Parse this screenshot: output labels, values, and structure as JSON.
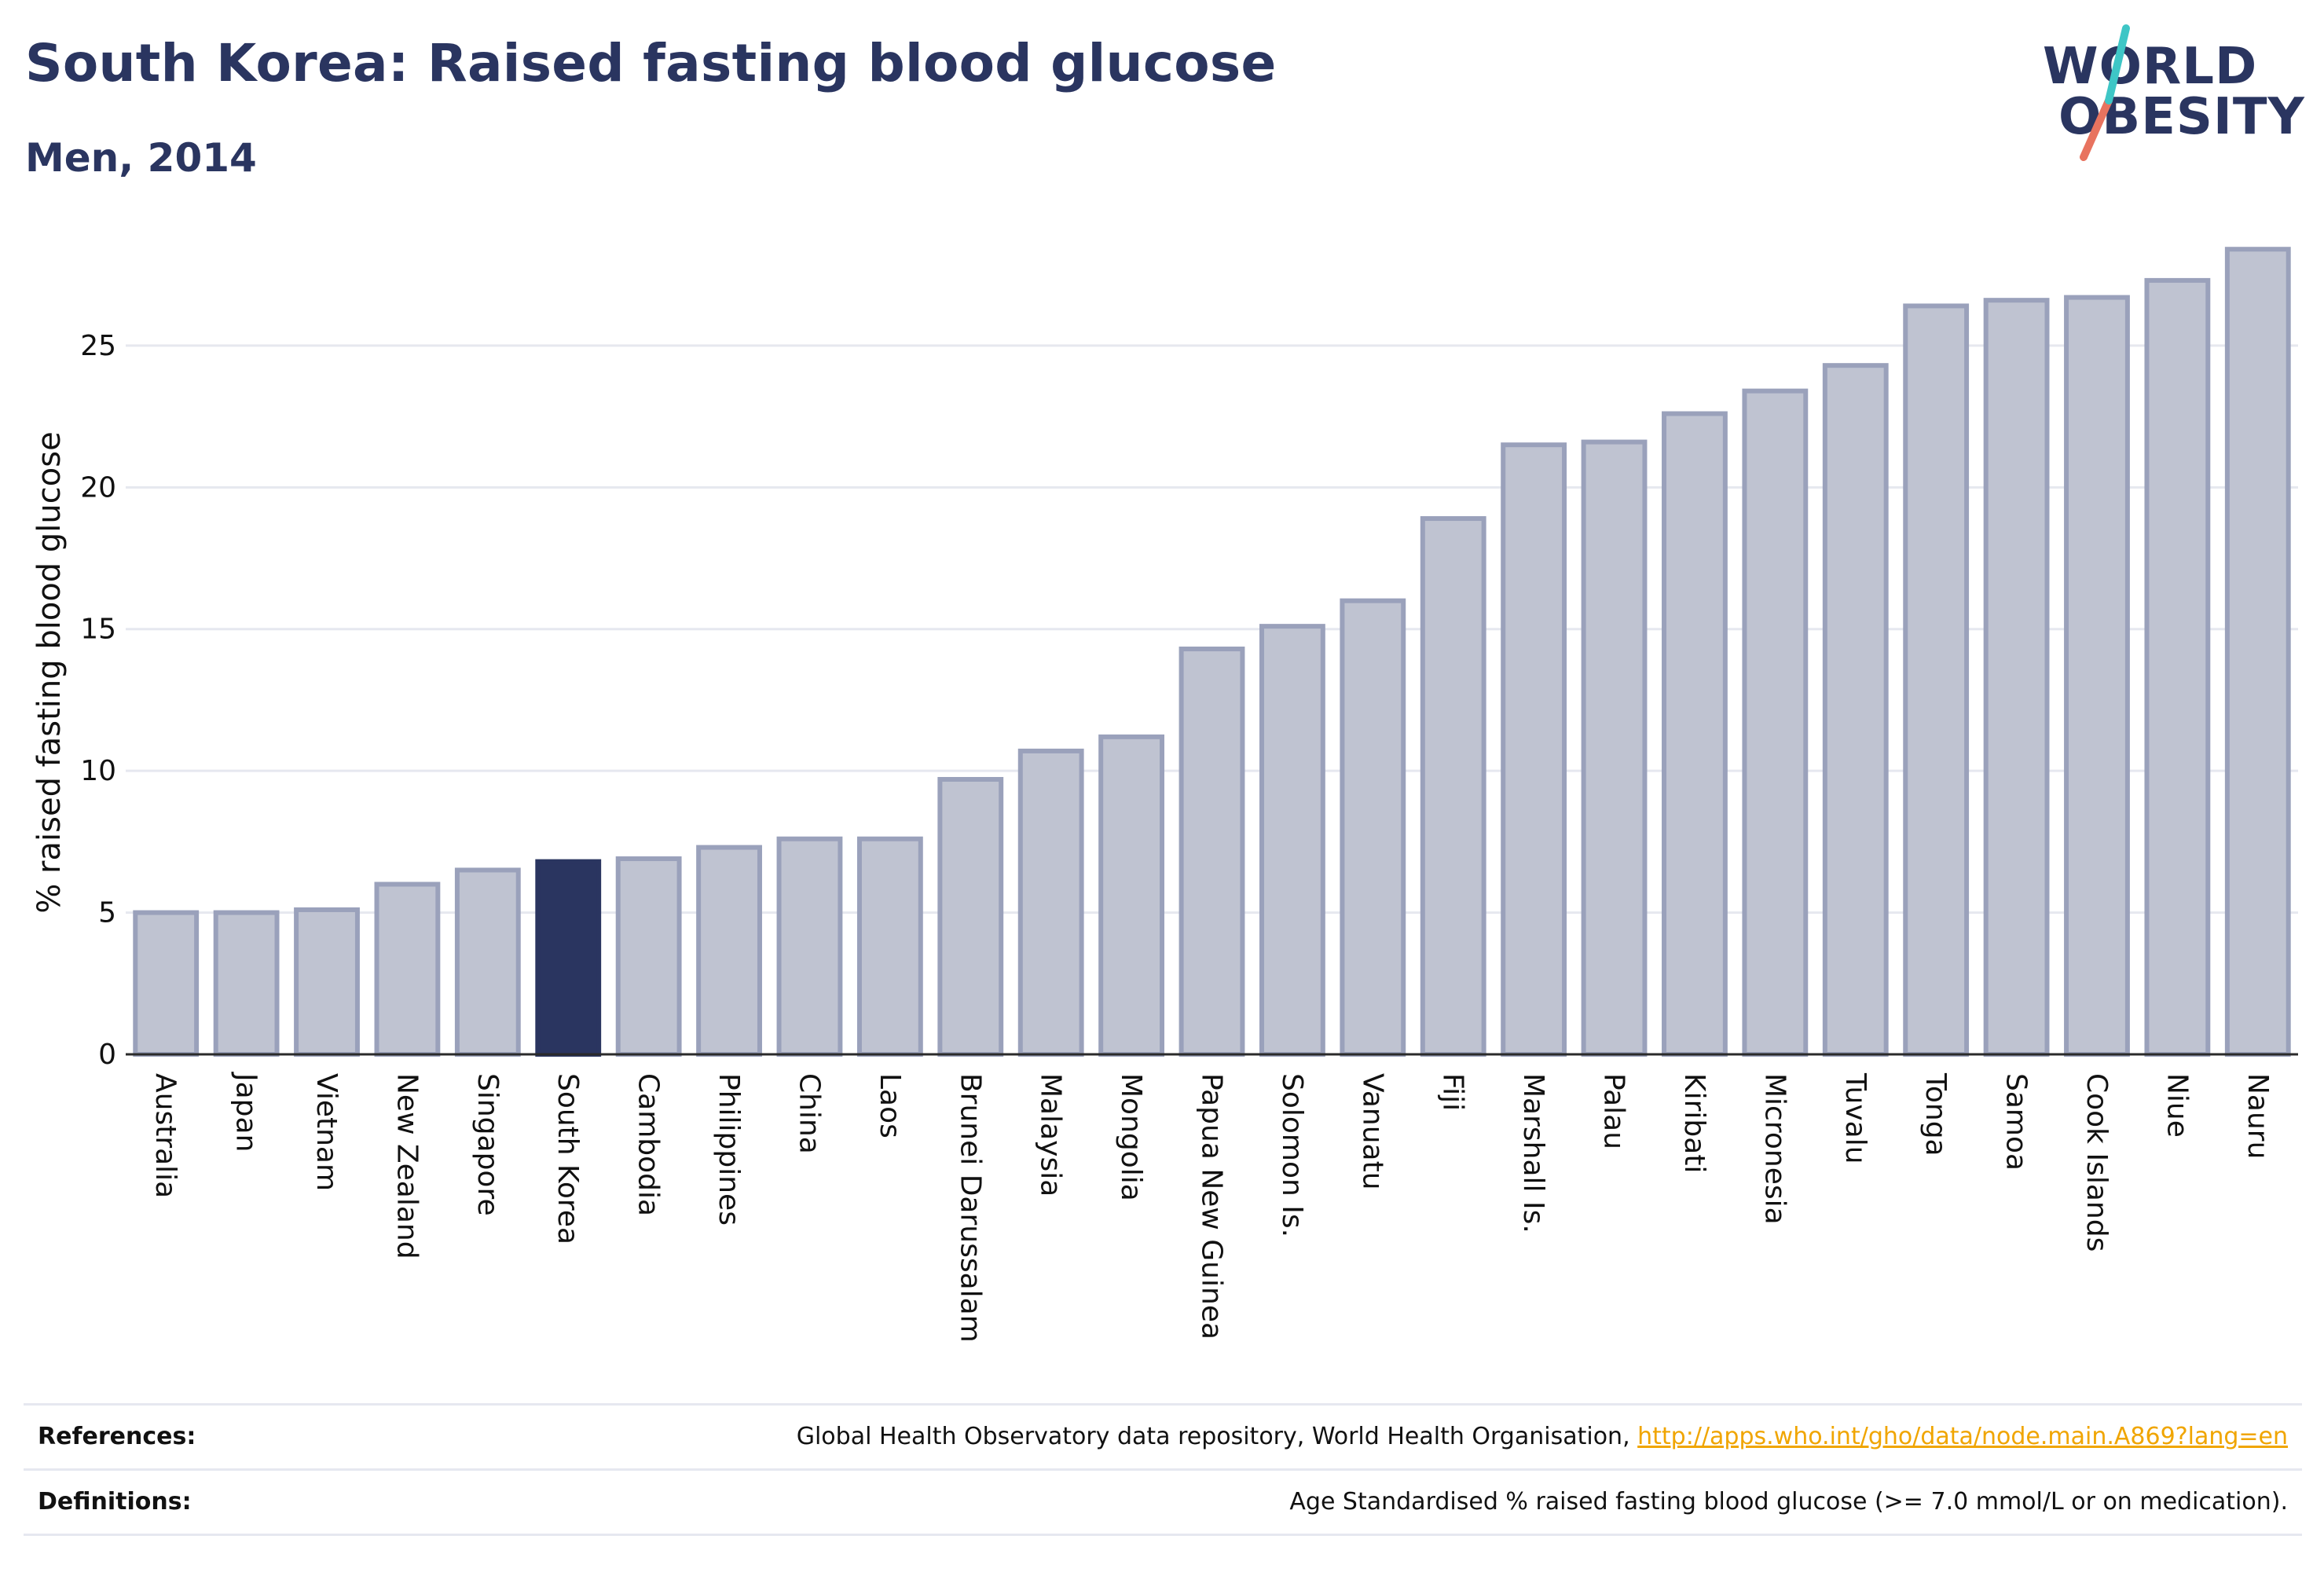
{
  "header": {
    "title": "South Korea: Raised fasting blood glucose",
    "subtitle": "Men, 2014"
  },
  "logo": {
    "line1": "WORLD",
    "line2": "OBESITY",
    "colors": [
      "#2a3560",
      "#e8735f",
      "#3ec6c6"
    ]
  },
  "chart_data": {
    "type": "bar",
    "title": "South Korea: Raised fasting blood glucose",
    "subtitle": "Men, 2014",
    "xlabel": "",
    "ylabel": "% raised fasting blood glucose",
    "ylim": [
      0,
      28.6
    ],
    "yticks": [
      0,
      5,
      10,
      15,
      20,
      25
    ],
    "grid": true,
    "highlight": "South Korea",
    "colors": {
      "bar": "#bfc3d1",
      "bar_edge": "#9aa1bb",
      "highlight": "#2a3560"
    },
    "categories": [
      "Australia",
      "Japan",
      "Vietnam",
      "New Zealand",
      "Singapore",
      "South Korea",
      "Cambodia",
      "Philippines",
      "China",
      "Laos",
      "Brunei Darussalam",
      "Malaysia",
      "Mongolia",
      "Papua New Guinea",
      "Solomon Is.",
      "Vanuatu",
      "Fiji",
      "Marshall Is.",
      "Palau",
      "Kiribati",
      "Micronesia",
      "Tuvalu",
      "Tonga",
      "Samoa",
      "Cook Islands",
      "Niue",
      "Nauru"
    ],
    "values": [
      5.0,
      5.0,
      5.1,
      6.0,
      6.5,
      6.8,
      6.9,
      7.3,
      7.6,
      7.6,
      9.7,
      10.7,
      11.2,
      14.3,
      15.1,
      16.0,
      18.9,
      21.5,
      21.6,
      22.6,
      23.4,
      24.3,
      26.4,
      26.6,
      26.7,
      27.3,
      28.4
    ]
  },
  "footer": {
    "references_label": "References:",
    "references_text": "Global Health Observatory data repository, World Health Organisation, ",
    "references_link": "http://apps.who.int/gho/data/node.main.A869?lang=en",
    "definitions_label": "Definitions:",
    "definitions_text": "Age Standardised % raised fasting blood glucose (>= 7.0 mmol/L or on medication)."
  }
}
